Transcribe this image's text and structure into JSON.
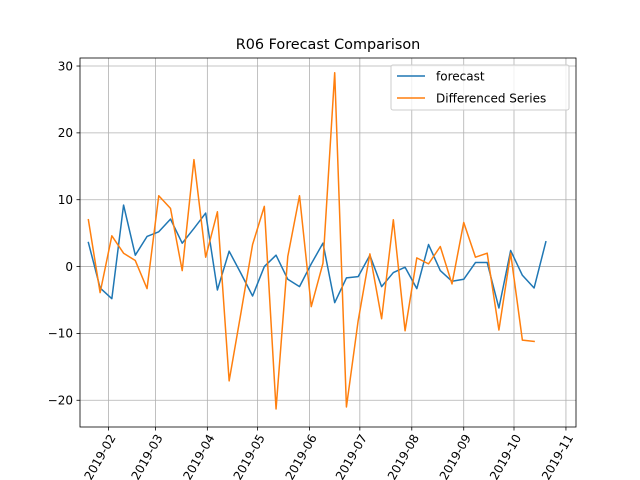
{
  "chart_data": {
    "type": "line",
    "title": "R06 Forecast Comparison",
    "xlabel": "",
    "ylabel": "",
    "x_tick_labels": [
      "2019-02",
      "2019-03",
      "2019-04",
      "2019-05",
      "2019-06",
      "2019-07",
      "2019-08",
      "2019-09",
      "2019-10",
      "2019-11"
    ],
    "x_tick_dates": [
      "2019-02-01",
      "2019-03-01",
      "2019-04-01",
      "2019-05-01",
      "2019-06-01",
      "2019-07-01",
      "2019-08-01",
      "2019-09-01",
      "2019-10-01",
      "2019-11-01"
    ],
    "y_tick_labels": [
      "30",
      "20",
      "10",
      "0",
      "−10",
      "−20"
    ],
    "y_tick_values": [
      30,
      20,
      10,
      0,
      -10,
      -20
    ],
    "xlim": [
      "2019-01-15",
      "2019-11-07"
    ],
    "ylim": [
      -24,
      31.2
    ],
    "grid": true,
    "legend": "top-right",
    "series": [
      {
        "name": "forecast",
        "color": "#1f77b4",
        "x": [
          "2019-01-20",
          "2019-01-27",
          "2019-02-03",
          "2019-02-10",
          "2019-02-17",
          "2019-02-24",
          "2019-03-03",
          "2019-03-10",
          "2019-03-17",
          "2019-03-24",
          "2019-03-31",
          "2019-04-07",
          "2019-04-14",
          "2019-04-21",
          "2019-04-28",
          "2019-05-05",
          "2019-05-12",
          "2019-05-19",
          "2019-05-26",
          "2019-06-02",
          "2019-06-09",
          "2019-06-16",
          "2019-06-23",
          "2019-06-30",
          "2019-07-07",
          "2019-07-14",
          "2019-07-21",
          "2019-07-28",
          "2019-08-04",
          "2019-08-11",
          "2019-08-18",
          "2019-08-25",
          "2019-09-01",
          "2019-09-08",
          "2019-09-15",
          "2019-09-22",
          "2019-09-29",
          "2019-10-06",
          "2019-10-13",
          "2019-10-20"
        ],
        "values": [
          3.6,
          -3.2,
          -4.8,
          9.2,
          1.7,
          4.5,
          5.2,
          7.1,
          3.5,
          5.7,
          8.0,
          -3.5,
          2.3,
          -1.0,
          -4.4,
          0.0,
          1.7,
          -1.9,
          -3.0,
          0.4,
          3.5,
          -5.4,
          -1.7,
          -1.5,
          1.7,
          -3.0,
          -0.9,
          -0.1,
          -3.3,
          3.3,
          -0.6,
          -2.2,
          -1.9,
          0.6,
          0.6,
          -6.2,
          2.4,
          -1.3,
          -3.2,
          3.7
        ]
      },
      {
        "name": "Differenced Series",
        "color": "#ff7f0e",
        "x": [
          "2019-01-20",
          "2019-01-27",
          "2019-02-03",
          "2019-02-10",
          "2019-02-17",
          "2019-02-24",
          "2019-03-03",
          "2019-03-10",
          "2019-03-17",
          "2019-03-24",
          "2019-03-31",
          "2019-04-07",
          "2019-04-14",
          "2019-04-21",
          "2019-04-28",
          "2019-05-05",
          "2019-05-12",
          "2019-05-19",
          "2019-05-26",
          "2019-06-02",
          "2019-06-09",
          "2019-06-16",
          "2019-06-23",
          "2019-06-30",
          "2019-07-07",
          "2019-07-14",
          "2019-07-21",
          "2019-07-28",
          "2019-08-04",
          "2019-08-11",
          "2019-08-18",
          "2019-08-25",
          "2019-09-01",
          "2019-09-08",
          "2019-09-15",
          "2019-09-22",
          "2019-09-29",
          "2019-10-06",
          "2019-10-13"
        ],
        "values": [
          7.0,
          -3.9,
          4.6,
          2.0,
          0.9,
          -3.3,
          10.6,
          8.7,
          -0.6,
          16.0,
          1.4,
          8.2,
          -17.1,
          -7.0,
          3.3,
          9.0,
          -21.3,
          1.5,
          10.6,
          -6.0,
          0.5,
          29.0,
          -21.0,
          -8.1,
          1.9,
          -7.8,
          7.0,
          -9.6,
          1.3,
          0.4,
          3.0,
          -2.6,
          6.6,
          1.4,
          2.0,
          -9.5,
          2.0,
          -11.0,
          -11.2
        ]
      }
    ]
  }
}
